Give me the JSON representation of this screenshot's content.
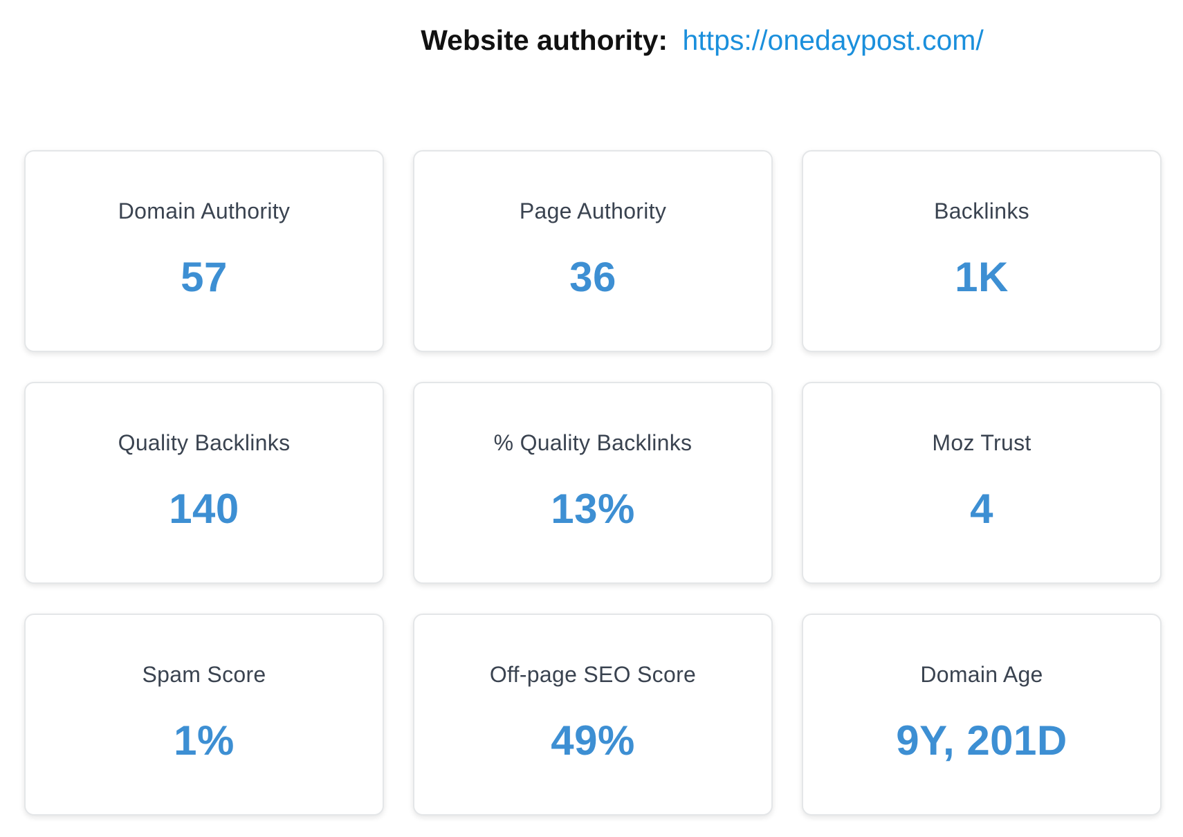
{
  "header": {
    "label": "Website authority:",
    "url": "https://onedaypost.com/"
  },
  "metrics": [
    {
      "label": "Domain Authority",
      "value": "57"
    },
    {
      "label": "Page Authority",
      "value": "36"
    },
    {
      "label": "Backlinks",
      "value": "1K"
    },
    {
      "label": "Quality Backlinks",
      "value": "140"
    },
    {
      "label": "% Quality Backlinks",
      "value": "13%"
    },
    {
      "label": "Moz Trust",
      "value": "4"
    },
    {
      "label": "Spam Score",
      "value": "1%"
    },
    {
      "label": "Off-page SEO Score",
      "value": "49%"
    },
    {
      "label": "Domain Age",
      "value": "9Y, 201D"
    }
  ],
  "colors": {
    "accent": "#3d8fd3",
    "link": "#1a8fdc",
    "label_text": "#3a4350",
    "card_border": "#e4e6e8"
  }
}
